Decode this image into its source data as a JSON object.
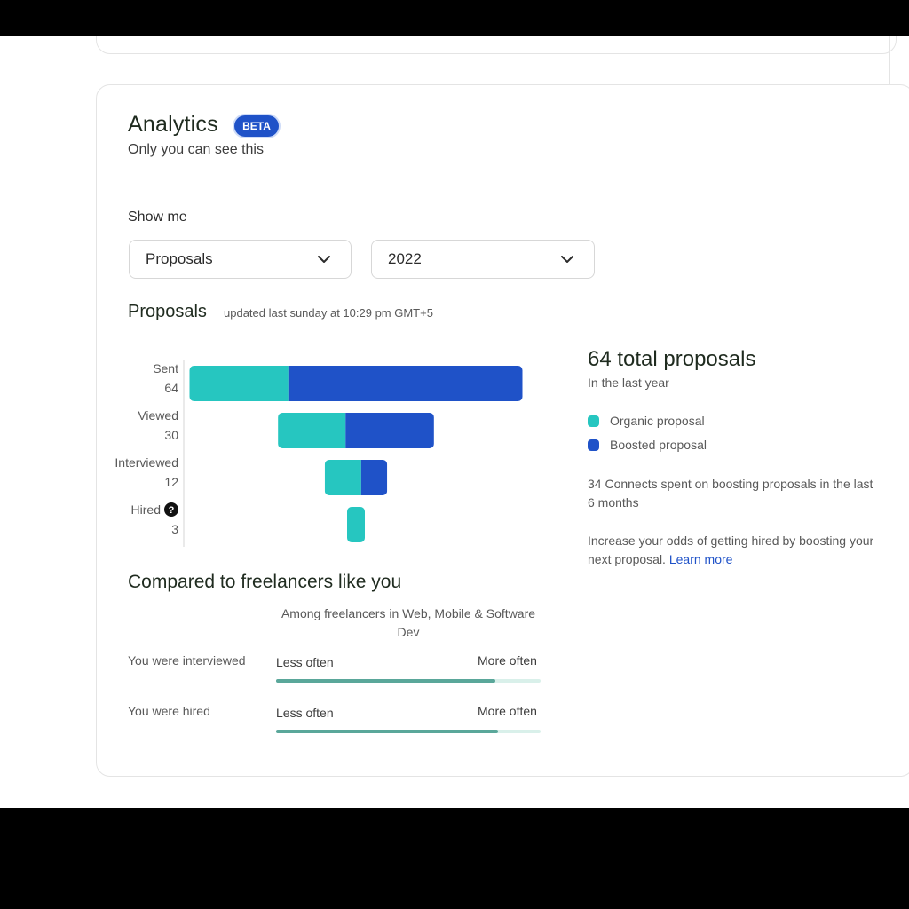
{
  "analytics": {
    "title": "Analytics",
    "badge": "BETA",
    "subtitle": "Only you can see this"
  },
  "filters": {
    "label": "Show me",
    "metric_select": "Proposals",
    "year_select": "2022"
  },
  "proposals": {
    "title": "Proposals",
    "updated": "updated last sunday at 10:29 pm GMT+5"
  },
  "summary": {
    "total": "64 total proposals",
    "period": "In the last year",
    "legend": [
      {
        "label": "Organic proposal",
        "color": "#26c6c0"
      },
      {
        "label": "Boosted proposal",
        "color": "#1f52c8"
      }
    ],
    "connects_note": "34 Connects spent on boosting proposals in the last 6 months",
    "boost_note": "Increase your odds of getting hired by boosting your next proposal.",
    "learn_more": "Learn more"
  },
  "chart_data": {
    "type": "bar",
    "orientation": "horizontal-funnel",
    "categories": [
      "Sent",
      "Viewed",
      "Interviewed",
      "Hired"
    ],
    "totals": [
      64,
      30,
      12,
      3
    ],
    "series": [
      {
        "name": "Organic proposal",
        "color": "#26c6c0",
        "values": [
          19,
          13,
          7,
          3
        ]
      },
      {
        "name": "Boosted proposal",
        "color": "#1f52c8",
        "values": [
          45,
          17,
          5,
          0
        ]
      }
    ],
    "hired_help_icon": "question-circle-icon"
  },
  "comparison": {
    "title": "Compared to freelancers like you",
    "subtitle": "Among freelancers in Web, Mobile & Software Dev",
    "less_label": "Less often",
    "more_label": "More often",
    "rows": [
      {
        "label": "You were interviewed",
        "level": 0.83
      },
      {
        "label": "You were hired",
        "level": 0.84
      }
    ]
  }
}
